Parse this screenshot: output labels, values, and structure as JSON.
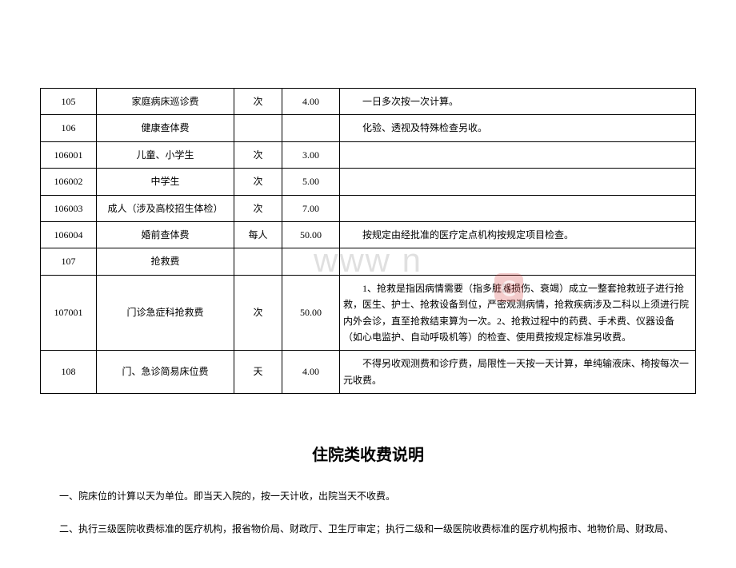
{
  "table": {
    "rows": [
      {
        "code": "105",
        "name": "家庭病床巡诊费",
        "unit": "次",
        "price": "4.00",
        "desc": "一日多次按一次计算。"
      },
      {
        "code": "106",
        "name": "健康查体费",
        "unit": "",
        "price": "",
        "desc": "化验、透视及特殊检查另收。"
      },
      {
        "code": "106001",
        "name": "儿童、小学生",
        "unit": "次",
        "price": "3.00",
        "desc": ""
      },
      {
        "code": "106002",
        "name": "中学生",
        "unit": "次",
        "price": "5.00",
        "desc": ""
      },
      {
        "code": "106003",
        "name": "成人（涉及高校招生体检）",
        "unit": "次",
        "price": "7.00",
        "desc": ""
      },
      {
        "code": "106004",
        "name": "婚前查体费",
        "unit": "每人",
        "price": "50.00",
        "desc": "按规定由经批准的医疗定点机构按规定项目检查。"
      },
      {
        "code": "107",
        "name": "抢救费",
        "unit": "",
        "price": "",
        "desc": ""
      },
      {
        "code": "107001",
        "name": "门诊急症科抢救费",
        "unit": "次",
        "price": "50.00",
        "desc": "1、抢救是指因病情需要（指多脏器损伤、衰竭）成立一整套抢救班子进行抢救，医生、护士、抢救设备到位，严密观测病情，抢救疾病涉及二科以上须进行院内外会诊，直至抢救结束算为一次。2、抢救过程中的药费、手术费、仪器设备（如心电监护、自动呼吸机等）的检查、使用费按规定标准另收费。"
      },
      {
        "code": "108",
        "name": "门、急诊简易床位费",
        "unit": "天",
        "price": "4.00",
        "desc": "不得另收观测费和诊疗费，局限性一天按一天计算，单纯输液床、椅按每次一元收费。"
      }
    ]
  },
  "section_title": "住院类收费说明",
  "explain": {
    "p1": "一、院床位的计算以天为单位。即当天入院的，按一天计收，出院当天不收费。",
    "p2": "二、执行三级医院收费标准的医疗机构，报省物价局、财政厅、卫生厅审定；执行二级和一级医院收费标准的医疗机构报市、地物价局、财政局、"
  },
  "watermark": {
    "text": "www                     n"
  }
}
